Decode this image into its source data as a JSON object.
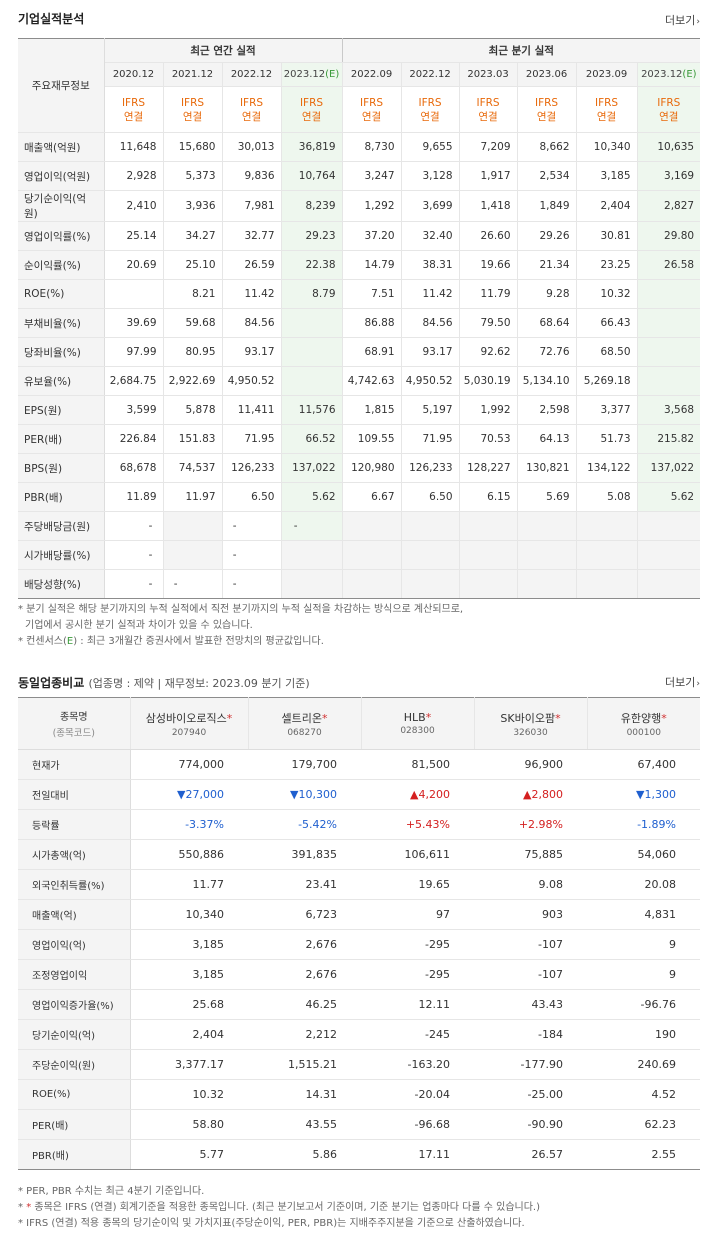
{
  "perf": {
    "title": "기업실적분석",
    "more": "더보기",
    "row_header": "주요재무정보",
    "group_annual": "최근 연간 실적",
    "group_quarter": "최근 분기 실적",
    "periods": [
      "2020.12",
      "2021.12",
      "2022.12",
      "2023.12",
      "2022.09",
      "2022.12",
      "2023.03",
      "2023.06",
      "2023.09",
      "2023.12"
    ],
    "estimate_mark": "(E)",
    "ifrs_1": "IFRS",
    "ifrs_2": "연결",
    "rows": [
      {
        "label": "매출액(억원)",
        "v": [
          "11,648",
          "15,680",
          "30,013",
          "36,819",
          "8,730",
          "9,655",
          "7,209",
          "8,662",
          "10,340",
          "10,635"
        ]
      },
      {
        "label": "영업이익(억원)",
        "v": [
          "2,928",
          "5,373",
          "9,836",
          "10,764",
          "3,247",
          "3,128",
          "1,917",
          "2,534",
          "3,185",
          "3,169"
        ]
      },
      {
        "label": "당기순이익(억원)",
        "v": [
          "2,410",
          "3,936",
          "7,981",
          "8,239",
          "1,292",
          "3,699",
          "1,418",
          "1,849",
          "2,404",
          "2,827"
        ]
      },
      {
        "label": "영업이익률(%)",
        "v": [
          "25.14",
          "34.27",
          "32.77",
          "29.23",
          "37.20",
          "32.40",
          "26.60",
          "29.26",
          "30.81",
          "29.80"
        ]
      },
      {
        "label": "순이익률(%)",
        "v": [
          "20.69",
          "25.10",
          "26.59",
          "22.38",
          "14.79",
          "38.31",
          "19.66",
          "21.34",
          "23.25",
          "26.58"
        ]
      },
      {
        "label": "ROE(%)",
        "v": [
          "",
          "8.21",
          "11.42",
          "8.79",
          "7.51",
          "11.42",
          "11.79",
          "9.28",
          "10.32",
          ""
        ]
      },
      {
        "label": "부채비율(%)",
        "v": [
          "39.69",
          "59.68",
          "84.56",
          "",
          "86.88",
          "84.56",
          "79.50",
          "68.64",
          "66.43",
          ""
        ]
      },
      {
        "label": "당좌비율(%)",
        "v": [
          "97.99",
          "80.95",
          "93.17",
          "",
          "68.91",
          "93.17",
          "92.62",
          "72.76",
          "68.50",
          ""
        ]
      },
      {
        "label": "유보율(%)",
        "v": [
          "2,684.75",
          "2,922.69",
          "4,950.52",
          "",
          "4,742.63",
          "4,950.52",
          "5,030.19",
          "5,134.10",
          "5,269.18",
          ""
        ]
      },
      {
        "label": "EPS(원)",
        "v": [
          "3,599",
          "5,878",
          "11,411",
          "11,576",
          "1,815",
          "5,197",
          "1,992",
          "2,598",
          "3,377",
          "3,568"
        ]
      },
      {
        "label": "PER(배)",
        "v": [
          "226.84",
          "151.83",
          "71.95",
          "66.52",
          "109.55",
          "71.95",
          "70.53",
          "64.13",
          "51.73",
          "215.82"
        ]
      },
      {
        "label": "BPS(원)",
        "v": [
          "68,678",
          "74,537",
          "126,233",
          "137,022",
          "120,980",
          "126,233",
          "128,227",
          "130,821",
          "134,122",
          "137,022"
        ]
      },
      {
        "label": "PBR(배)",
        "v": [
          "11.89",
          "11.97",
          "6.50",
          "5.62",
          "6.67",
          "6.50",
          "6.15",
          "5.69",
          "5.08",
          "5.62"
        ]
      },
      {
        "label": "주당배당금(원)",
        "v": [
          "-",
          "",
          "-",
          "-",
          "",
          "",
          "",
          "",
          "",
          ""
        ]
      },
      {
        "label": "시가배당률(%)",
        "v": [
          "-",
          "",
          "-",
          "",
          "",
          "",
          "",
          "",
          "",
          ""
        ]
      },
      {
        "label": "배당성향(%)",
        "v": [
          "-",
          "-",
          "-",
          "",
          "",
          "",
          "",
          "",
          "",
          ""
        ]
      }
    ],
    "note1": "* 분기 실적은 해당 분기까지의 누적 실적에서 직전 분기까지의 누적 실적을 차감하는 방식으로 계산되므로,",
    "note1b": "기업에서 공시한 분기 실적과 차이가 있을 수 있습니다.",
    "note2a": "* 컨센서스(",
    "note2e": "E",
    "note2b": ") : 최근 3개월간 증권사에서 발표한 전망치의 평균값입니다."
  },
  "peer": {
    "title": "동일업종비교",
    "subtitle": "(업종명 : 제약 | 재무정보: 2023.09 분기 기준)",
    "more": "더보기",
    "corner_1": "종목명",
    "corner_2": "(종목코드)",
    "companies": [
      {
        "name": "삼성바이오로직스",
        "code": "207940"
      },
      {
        "name": "셀트리온",
        "code": "068270"
      },
      {
        "name": "HLB",
        "code": "028300"
      },
      {
        "name": "SK바이오팜",
        "code": "326030"
      },
      {
        "name": "유한양행",
        "code": "000100"
      }
    ],
    "star": "*",
    "rows": [
      {
        "label": "현재가",
        "v": [
          "774,000",
          "179,700",
          "81,500",
          "96,900",
          "67,400"
        ]
      },
      {
        "label": "전일대비",
        "v": [
          "▼27,000",
          "▼10,300",
          "▲4,200",
          "▲2,800",
          "▼1,300"
        ],
        "dir": [
          "down",
          "down",
          "up",
          "up",
          "down"
        ]
      },
      {
        "label": "등락률",
        "v": [
          "-3.37%",
          "-5.42%",
          "+5.43%",
          "+2.98%",
          "-1.89%"
        ],
        "dir": [
          "down",
          "down",
          "up",
          "up",
          "down"
        ]
      },
      {
        "label": "시가총액(억)",
        "v": [
          "550,886",
          "391,835",
          "106,611",
          "75,885",
          "54,060"
        ]
      },
      {
        "label": "외국인취득률(%)",
        "v": [
          "11.77",
          "23.41",
          "19.65",
          "9.08",
          "20.08"
        ]
      },
      {
        "label": "매출액(억)",
        "v": [
          "10,340",
          "6,723",
          "97",
          "903",
          "4,831"
        ]
      },
      {
        "label": "영업이익(억)",
        "v": [
          "3,185",
          "2,676",
          "-295",
          "-107",
          "9"
        ]
      },
      {
        "label": "조정영업이익",
        "v": [
          "3,185",
          "2,676",
          "-295",
          "-107",
          "9"
        ]
      },
      {
        "label": "영업이익증가율(%)",
        "v": [
          "25.68",
          "46.25",
          "12.11",
          "43.43",
          "-96.76"
        ]
      },
      {
        "label": "당기순이익(억)",
        "v": [
          "2,404",
          "2,212",
          "-245",
          "-184",
          "190"
        ]
      },
      {
        "label": "주당순이익(원)",
        "v": [
          "3,377.17",
          "1,515.21",
          "-163.20",
          "-177.90",
          "240.69"
        ]
      },
      {
        "label": "ROE(%)",
        "v": [
          "10.32",
          "14.31",
          "-20.04",
          "-25.00",
          "4.52"
        ]
      },
      {
        "label": "PER(배)",
        "v": [
          "58.80",
          "43.55",
          "-96.68",
          "-90.90",
          "62.23"
        ]
      },
      {
        "label": "PBR(배)",
        "v": [
          "5.77",
          "5.86",
          "17.11",
          "26.57",
          "2.55"
        ]
      }
    ],
    "note1": "* PER, PBR 수치는 최근 4분기 기준입니다.",
    "note2_star": "* *",
    "note2": " 종목은 IFRS (연결) 회계기준을 적용한 종목입니다. (최근 분기보고서 기준이며, 기준 분기는 업종마다 다를 수 있습니다.)",
    "note3": "* IFRS (연결) 적용 종목의 당기순이익 및 가치지표(주당순이익, PER, PBR)는 지배주주지분을 기준으로 산출하였습니다."
  }
}
